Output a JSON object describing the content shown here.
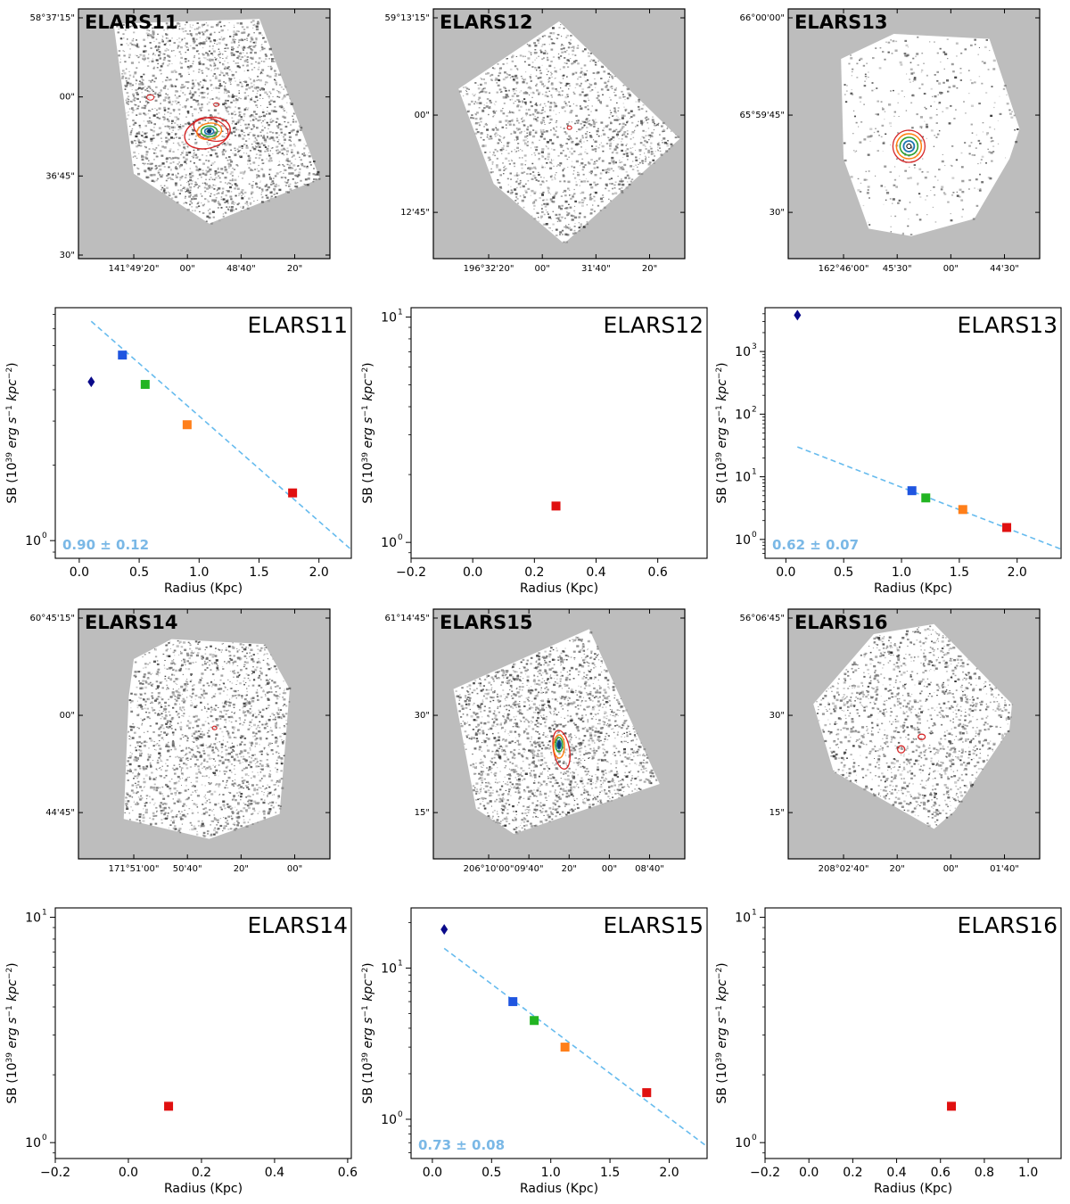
{
  "figure": {
    "colors": {
      "frame": "#000000",
      "image_bg": "#bdbdbd",
      "footprint": "#ffffff",
      "fit_line": "#66bbee",
      "fit_text": "#7ab8e6",
      "point_diamond": "#0a0a8a",
      "point_blue": "#1f55e0",
      "point_green": "#22b422",
      "point_orange": "#ff7f1a",
      "point_red": "#e01010",
      "contour_red": "#d62728",
      "contour_orange": "#ff7f0e",
      "contour_green": "#2ca02c",
      "contour_blue": "#1f77b4"
    }
  },
  "images": [
    {
      "label": "ELARS11",
      "dec_ticks": [
        "58°37'15\"",
        "00\"",
        "36'45\"",
        "30\""
      ],
      "ra_ticks": [
        "141°49'20\"",
        "00\"",
        "48'40\"",
        "20\""
      ],
      "contours": "strong"
    },
    {
      "label": "ELARS12",
      "dec_ticks": [
        "59°13'15\"",
        "00\"",
        "12'45\""
      ],
      "ra_ticks": [
        "196°32'20\"",
        "00\"",
        "31'40\"",
        "20\""
      ],
      "contours": "tiny"
    },
    {
      "label": "ELARS13",
      "dec_ticks": [
        "66°00'00\"",
        "65°59'45\"",
        "30\""
      ],
      "ra_ticks": [
        "162°46'00\"",
        "45'30\"",
        "00\"",
        "44'30\""
      ],
      "contours": "ring"
    },
    {
      "label": "ELARS14",
      "dec_ticks": [
        "60°45'15\"",
        "00\"",
        "44'45\""
      ],
      "ra_ticks": [
        "171°51'00\"",
        "50'40\"",
        "20\"",
        "00\""
      ],
      "contours": "tiny"
    },
    {
      "label": "ELARS15",
      "dec_ticks": [
        "61°14'45\"",
        "30\"",
        "15\""
      ],
      "ra_ticks": [
        "206°10'00\"",
        "09'40\"",
        "20\"",
        "00\"",
        "08'40\""
      ],
      "contours": "elongated"
    },
    {
      "label": "ELARS16",
      "dec_ticks": [
        "56°06'45\"",
        "30\"",
        "15\""
      ],
      "ra_ticks": [
        "208°02'40\"",
        "20\"",
        "00\"",
        "01'40\""
      ],
      "contours": "pair"
    }
  ],
  "chart_data": [
    {
      "type": "scatter",
      "title": "ELARS11",
      "xlabel": "Radius (Kpc)",
      "ylabel": "SB (10^39 erg s^-1 kpc^-2)",
      "yscale": "log",
      "xlim": [
        -0.2,
        2.27
      ],
      "ylim": [
        0.85,
        8.5
      ],
      "xticks": [
        {
          "v": 0.0,
          "t": "0.0"
        },
        {
          "v": 0.5,
          "t": "0.5"
        },
        {
          "v": 1.0,
          "t": "1.0"
        },
        {
          "v": 1.5,
          "t": "1.5"
        },
        {
          "v": 2.0,
          "t": "2.0"
        }
      ],
      "yticks": [
        {
          "v": 1,
          "t": "10",
          "sup": "0"
        }
      ],
      "points": [
        {
          "x": 0.1,
          "y": 4.3,
          "marker": "diamond",
          "color": "point_diamond"
        },
        {
          "x": 0.36,
          "y": 5.5,
          "marker": "square",
          "color": "point_blue"
        },
        {
          "x": 0.55,
          "y": 4.2,
          "marker": "square",
          "color": "point_green"
        },
        {
          "x": 0.9,
          "y": 2.9,
          "marker": "square",
          "color": "point_orange"
        },
        {
          "x": 1.78,
          "y": 1.55,
          "marker": "square",
          "color": "point_red"
        }
      ],
      "fit": {
        "x": [
          0.1,
          2.27
        ],
        "y": [
          7.5,
          0.92
        ]
      },
      "slope_label": "0.90 ± 0.12"
    },
    {
      "type": "scatter",
      "title": "ELARS12",
      "xlabel": "Radius (Kpc)",
      "ylabel": "SB (10^39 erg s^-1 kpc^-2)",
      "yscale": "log",
      "xlim": [
        -0.2,
        0.76
      ],
      "ylim": [
        0.85,
        11.0
      ],
      "xticks": [
        {
          "v": -0.2,
          "t": "−0.2"
        },
        {
          "v": 0.0,
          "t": "0.0"
        },
        {
          "v": 0.2,
          "t": "0.2"
        },
        {
          "v": 0.4,
          "t": "0.4"
        },
        {
          "v": 0.6,
          "t": "0.6"
        }
      ],
      "yticks": [
        {
          "v": 1,
          "t": "10",
          "sup": "0"
        },
        {
          "v": 10,
          "t": "10",
          "sup": "1"
        }
      ],
      "points": [
        {
          "x": 0.27,
          "y": 1.45,
          "marker": "square",
          "color": "point_red"
        }
      ]
    },
    {
      "type": "scatter",
      "title": "ELARS13",
      "xlabel": "Radius (Kpc)",
      "ylabel": "SB (10^39 erg s^-1 kpc^-2)",
      "yscale": "log",
      "xlim": [
        -0.18,
        2.38
      ],
      "ylim": [
        0.5,
        5000
      ],
      "xticks": [
        {
          "v": 0.0,
          "t": "0.0"
        },
        {
          "v": 0.5,
          "t": "0.5"
        },
        {
          "v": 1.0,
          "t": "1.0"
        },
        {
          "v": 1.5,
          "t": "1.5"
        },
        {
          "v": 2.0,
          "t": "2.0"
        }
      ],
      "yticks": [
        {
          "v": 1,
          "t": "10",
          "sup": "0"
        },
        {
          "v": 10,
          "t": "10",
          "sup": "1"
        },
        {
          "v": 100,
          "t": "10",
          "sup": "2"
        },
        {
          "v": 1000,
          "t": "10",
          "sup": "3"
        }
      ],
      "points": [
        {
          "x": 0.1,
          "y": 3800,
          "marker": "diamond",
          "color": "point_diamond"
        },
        {
          "x": 1.09,
          "y": 6.0,
          "marker": "square",
          "color": "point_blue"
        },
        {
          "x": 1.21,
          "y": 4.6,
          "marker": "square",
          "color": "point_green"
        },
        {
          "x": 1.53,
          "y": 3.0,
          "marker": "square",
          "color": "point_orange"
        },
        {
          "x": 1.91,
          "y": 1.55,
          "marker": "square",
          "color": "point_red"
        }
      ],
      "fit": {
        "x": [
          0.1,
          2.38
        ],
        "y": [
          30,
          0.7
        ]
      },
      "slope_label": "0.62 ± 0.07"
    },
    {
      "type": "scatter",
      "title": "ELARS14",
      "xlabel": "Radius (Kpc)",
      "ylabel": "SB (10^39 erg s^-1 kpc^-2)",
      "yscale": "log",
      "xlim": [
        -0.2,
        0.61
      ],
      "ylim": [
        0.85,
        11.0
      ],
      "xticks": [
        {
          "v": -0.2,
          "t": "−0.2"
        },
        {
          "v": 0.0,
          "t": "0.0"
        },
        {
          "v": 0.2,
          "t": "0.2"
        },
        {
          "v": 0.4,
          "t": "0.4"
        },
        {
          "v": 0.6,
          "t": "0.6"
        }
      ],
      "yticks": [
        {
          "v": 1,
          "t": "10",
          "sup": "0"
        },
        {
          "v": 10,
          "t": "10",
          "sup": "1"
        }
      ],
      "points": [
        {
          "x": 0.11,
          "y": 1.45,
          "marker": "square",
          "color": "point_red"
        }
      ]
    },
    {
      "type": "scatter",
      "title": "ELARS15",
      "xlabel": "Radius (Kpc)",
      "ylabel": "SB (10^39 erg s^-1 kpc^-2)",
      "yscale": "log",
      "xlim": [
        -0.18,
        2.32
      ],
      "ylim": [
        0.55,
        25
      ],
      "xticks": [
        {
          "v": 0.0,
          "t": "0.0"
        },
        {
          "v": 0.5,
          "t": "0.5"
        },
        {
          "v": 1.0,
          "t": "1.0"
        },
        {
          "v": 1.5,
          "t": "1.5"
        },
        {
          "v": 2.0,
          "t": "2.0"
        }
      ],
      "yticks": [
        {
          "v": 1,
          "t": "10",
          "sup": "0"
        },
        {
          "v": 10,
          "t": "10",
          "sup": "1"
        }
      ],
      "points": [
        {
          "x": 0.1,
          "y": 18,
          "marker": "diamond",
          "color": "point_diamond"
        },
        {
          "x": 0.68,
          "y": 6.0,
          "marker": "square",
          "color": "point_blue"
        },
        {
          "x": 0.86,
          "y": 4.5,
          "marker": "square",
          "color": "point_green"
        },
        {
          "x": 1.12,
          "y": 3.0,
          "marker": "square",
          "color": "point_orange"
        },
        {
          "x": 1.81,
          "y": 1.5,
          "marker": "square",
          "color": "point_red"
        }
      ],
      "fit": {
        "x": [
          0.1,
          2.32
        ],
        "y": [
          13.5,
          0.66
        ]
      },
      "slope_label": "0.73 ± 0.08"
    },
    {
      "type": "scatter",
      "title": "ELARS16",
      "xlabel": "Radius (Kpc)",
      "ylabel": "SB (10^39 erg s^-1 kpc^-2)",
      "yscale": "log",
      "xlim": [
        -0.2,
        1.15
      ],
      "ylim": [
        0.85,
        11.0
      ],
      "xticks": [
        {
          "v": -0.2,
          "t": "−0.2"
        },
        {
          "v": 0.0,
          "t": "0.0"
        },
        {
          "v": 0.2,
          "t": "0.2"
        },
        {
          "v": 0.4,
          "t": "0.4"
        },
        {
          "v": 0.6,
          "t": "0.6"
        },
        {
          "v": 0.8,
          "t": "0.8"
        },
        {
          "v": 1.0,
          "t": "1.0"
        }
      ],
      "yticks": [
        {
          "v": 1,
          "t": "10",
          "sup": "0"
        },
        {
          "v": 10,
          "t": "10",
          "sup": "1"
        }
      ],
      "points": [
        {
          "x": 0.65,
          "y": 1.45,
          "marker": "square",
          "color": "point_red"
        }
      ]
    }
  ]
}
